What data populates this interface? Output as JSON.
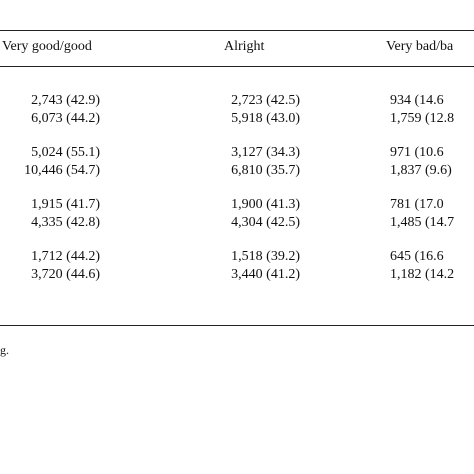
{
  "table": {
    "headers": [
      "Very good/good",
      "Alright",
      "Very bad/ba"
    ],
    "rows": [
      [
        "2,743 (42.9)",
        "2,723 (42.5)",
        "934 (14.6"
      ],
      [
        "6,073 (44.2)",
        "5,918 (43.0)",
        "1,759 (12.8"
      ],
      [
        "5,024 (55.1)",
        "3,127 (34.3)",
        "971 (10.6"
      ],
      [
        "10,446 (54.7)",
        "6,810 (35.7)",
        "1,837 (9.6)"
      ],
      [
        "1,915 (41.7)",
        "1,900 (41.3)",
        "781 (17.0"
      ],
      [
        "4,335 (42.8)",
        "4,304 (42.5)",
        "1,485 (14.7"
      ],
      [
        "1,712 (44.2)",
        "1,518 (39.2)",
        "645 (16.6"
      ],
      [
        "3,720 (44.6)",
        "3,440 (41.2)",
        "1,182 (14.2"
      ]
    ]
  },
  "footnote": "g."
}
